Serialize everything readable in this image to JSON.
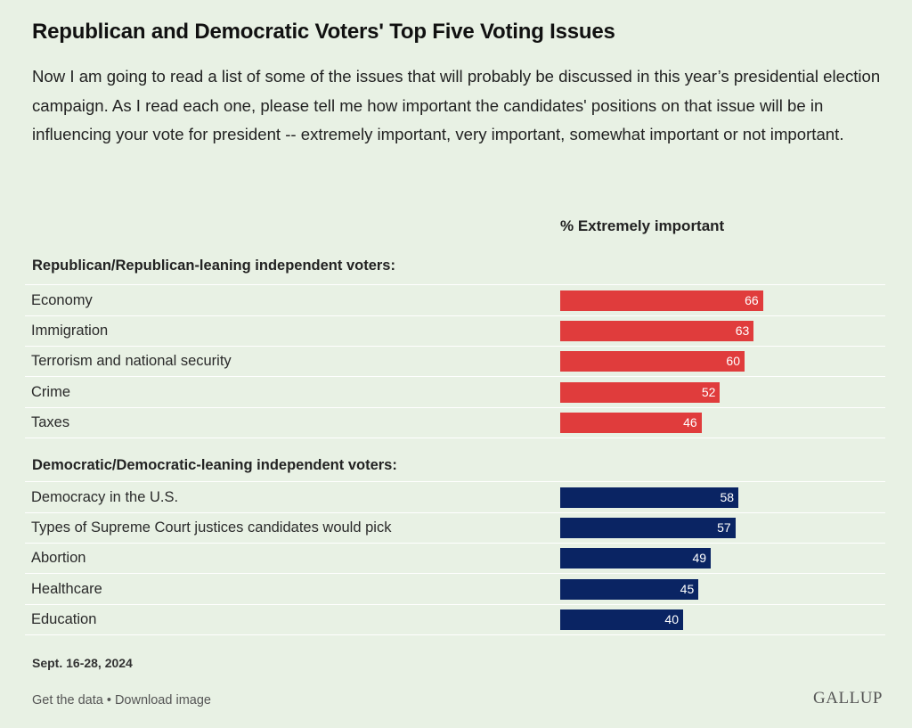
{
  "title": "Republican and Democratic Voters' Top Five Voting Issues",
  "subtitle": "Now I am going to read a list of some of the issues that will probably be discussed in this year’s presidential election campaign. As I read each one, please tell me how important the candidates' positions on that issue will be in influencing your vote for president -- extremely important, very important, somewhat important or not important.",
  "colors": {
    "republican": "#e03c3c",
    "democratic": "#0a2463",
    "background": "#e8f1e4"
  },
  "chart_data": {
    "type": "bar",
    "orientation": "horizontal",
    "value_header": "% Extremely important",
    "xlim": [
      0,
      100
    ],
    "groups": [
      {
        "heading": "Republican/Republican-leaning independent voters:",
        "color": "#e03c3c",
        "categories": [
          "Economy",
          "Immigration",
          "Terrorism and national security",
          "Crime",
          "Taxes"
        ],
        "values": [
          66,
          63,
          60,
          52,
          46
        ]
      },
      {
        "heading": "Democratic/Democratic-leaning independent voters:",
        "color": "#0a2463",
        "categories": [
          "Democracy in the U.S.",
          "Types of Supreme Court justices candidates would pick",
          "Abortion",
          "Healthcare",
          "Education"
        ],
        "values": [
          58,
          57,
          49,
          45,
          40
        ]
      }
    ]
  },
  "footer": {
    "date": "Sept. 16-28, 2024",
    "get_data": "Get the data",
    "separator": "•",
    "download": "Download image",
    "logo": "GALLUP"
  }
}
